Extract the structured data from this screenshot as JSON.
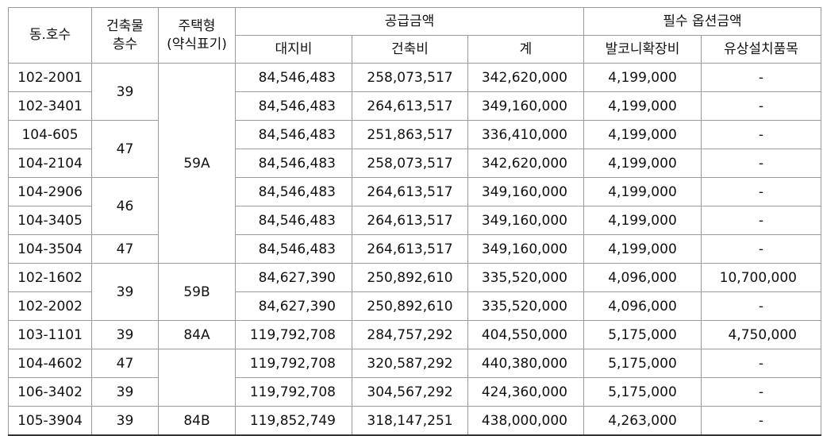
{
  "headers": {
    "unit": "동.호수",
    "floors_l1": "건축물",
    "floors_l2": "층수",
    "type_l1": "주택형",
    "type_l2": "(약식표기)",
    "supply": "공급금액",
    "land": "대지비",
    "building": "건축비",
    "total": "계",
    "options": "필수 옵션금액",
    "balcony": "발코니확장비",
    "paid_items": "유상설치품목"
  },
  "rows": [
    {
      "unit": "102-2001",
      "floors": "39",
      "type": "59A",
      "land": "84,546,483",
      "building": "258,073,517",
      "total": "342,620,000",
      "balcony": "4,199,000",
      "paid": "-"
    },
    {
      "unit": "102-3401",
      "floors": "",
      "type": "",
      "land": "84,546,483",
      "building": "264,613,517",
      "total": "349,160,000",
      "balcony": "4,199,000",
      "paid": "-"
    },
    {
      "unit": "104-605",
      "floors": "47",
      "type": "",
      "land": "84,546,483",
      "building": "251,863,517",
      "total": "336,410,000",
      "balcony": "4,199,000",
      "paid": "-"
    },
    {
      "unit": "104-2104",
      "floors": "",
      "type": "",
      "land": "84,546,483",
      "building": "258,073,517",
      "total": "342,620,000",
      "balcony": "4,199,000",
      "paid": "-"
    },
    {
      "unit": "104-2906",
      "floors": "46",
      "type": "",
      "land": "84,546,483",
      "building": "264,613,517",
      "total": "349,160,000",
      "balcony": "4,199,000",
      "paid": "-"
    },
    {
      "unit": "104-3405",
      "floors": "",
      "type": "",
      "land": "84,546,483",
      "building": "264,613,517",
      "total": "349,160,000",
      "balcony": "4,199,000",
      "paid": "-"
    },
    {
      "unit": "104-3504",
      "floors": "47",
      "type": "",
      "land": "84,546,483",
      "building": "264,613,517",
      "total": "349,160,000",
      "balcony": "4,199,000",
      "paid": "-"
    },
    {
      "unit": "102-1602",
      "floors": "39",
      "type": "59B",
      "land": "84,627,390",
      "building": "250,892,610",
      "total": "335,520,000",
      "balcony": "4,096,000",
      "paid": "10,700,000"
    },
    {
      "unit": "102-2002",
      "floors": "",
      "type": "",
      "land": "84,627,390",
      "building": "250,892,610",
      "total": "335,520,000",
      "balcony": "4,096,000",
      "paid": "-"
    },
    {
      "unit": "103-1101",
      "floors": "39",
      "type": "84A",
      "land": "119,792,708",
      "building": "284,757,292",
      "total": "404,550,000",
      "balcony": "5,175,000",
      "paid": "4,750,000"
    },
    {
      "unit": "104-4602",
      "floors": "47",
      "type": "",
      "land": "119,792,708",
      "building": "320,587,292",
      "total": "440,380,000",
      "balcony": "5,175,000",
      "paid": "-"
    },
    {
      "unit": "106-3402",
      "floors": "39",
      "type": "",
      "land": "119,792,708",
      "building": "304,567,292",
      "total": "424,360,000",
      "balcony": "5,175,000",
      "paid": "-"
    },
    {
      "unit": "105-3904",
      "floors": "39",
      "type": "84B",
      "land": "119,852,749",
      "building": "318,147,251",
      "total": "438,000,000",
      "balcony": "4,263,000",
      "paid": "-"
    }
  ]
}
